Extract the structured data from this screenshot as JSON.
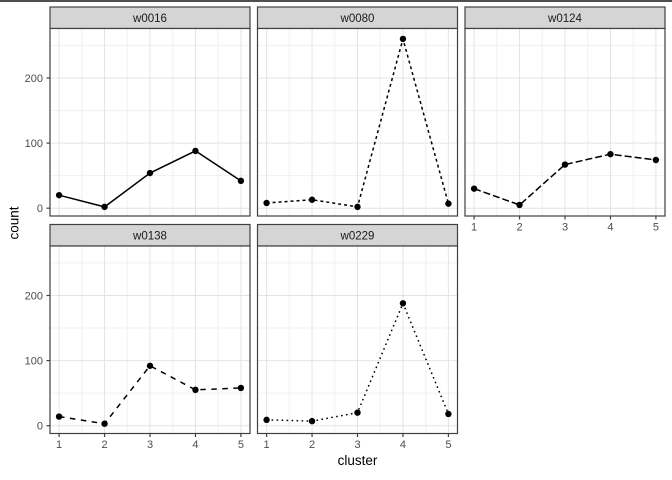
{
  "chart_data": {
    "type": "line",
    "faceted": true,
    "title": "",
    "xlabel": "cluster",
    "ylabel": "count",
    "x": [
      1,
      2,
      3,
      4,
      5
    ],
    "x_tick_labels": [
      "1",
      "2",
      "3",
      "4",
      "5"
    ],
    "y_ticks": [
      0,
      100,
      200
    ],
    "y_tick_labels": [
      "0",
      "100",
      "200"
    ],
    "y_minor_ticks": [
      50,
      150,
      250
    ],
    "x_minor_ticks": [
      1.5,
      2.5,
      3.5,
      4.5
    ],
    "xlim": [
      0.8,
      5.2
    ],
    "ylim": [
      -12,
      276
    ],
    "grid": true,
    "legend": "none",
    "columns": 3,
    "series": [
      {
        "name": "w0016",
        "linetype": "solid",
        "values": [
          20,
          2,
          54,
          88,
          42
        ]
      },
      {
        "name": "w0080",
        "linetype": "short-dash",
        "values": [
          8,
          13,
          2,
          260,
          7
        ]
      },
      {
        "name": "w0124",
        "linetype": "long-dash",
        "values": [
          30,
          5,
          67,
          83,
          74
        ]
      },
      {
        "name": "w0138",
        "linetype": "spaced-dash",
        "values": [
          14,
          3,
          92,
          55,
          58
        ]
      },
      {
        "name": "w0229",
        "linetype": "dotted",
        "values": [
          9,
          7,
          20,
          188,
          18
        ]
      }
    ],
    "colors": {
      "line": "#000000",
      "point": "#000000",
      "strip_fill": "#d5d5d5",
      "panel_border": "#404040",
      "grid_major": "#e4e4e4",
      "grid_minor": "#f1f1f1",
      "tick_label": "#4d4d4d",
      "strip_text": "#1a1a1a"
    }
  }
}
